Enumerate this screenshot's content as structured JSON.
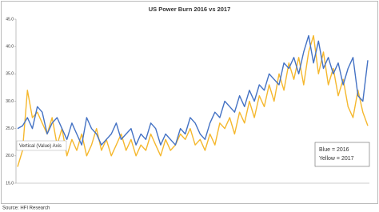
{
  "chart_data": {
    "type": "line",
    "title": "US Power Burn 2016 vs 2017",
    "series": [
      {
        "name": "Blue = 2016",
        "color": "#4472c4",
        "values": [
          25,
          25.5,
          27,
          25,
          29,
          28,
          24,
          26,
          27,
          25,
          23,
          26,
          24,
          22,
          27,
          25,
          24,
          22,
          23,
          24,
          26,
          23,
          24,
          25,
          22,
          24,
          23,
          26,
          25,
          22,
          24,
          23,
          22,
          25,
          24,
          27,
          26,
          24,
          23,
          26,
          28,
          27,
          30,
          29,
          28,
          31,
          29,
          32,
          30,
          33,
          32,
          35,
          34,
          33,
          37,
          36,
          38,
          35,
          39,
          42,
          37,
          41,
          36,
          38,
          35,
          37,
          33,
          36,
          38,
          31,
          30,
          37.5
        ]
      },
      {
        "name": "Yellow = 2017",
        "color": "#f5b82e",
        "values": [
          18,
          21,
          32,
          27,
          28,
          26,
          24,
          27,
          22,
          25,
          20,
          23,
          21,
          24,
          20,
          22,
          25,
          21,
          23,
          20,
          22,
          24,
          21,
          23,
          20,
          22,
          21,
          24,
          22,
          20,
          23,
          21,
          22,
          24,
          23,
          25,
          22,
          23,
          21,
          24,
          22,
          26,
          25,
          27,
          24,
          28,
          26,
          30,
          27,
          31,
          29,
          33,
          30,
          35,
          32,
          37,
          34,
          38,
          33,
          39,
          42,
          35,
          39,
          33,
          36,
          31,
          34,
          29,
          27,
          32,
          28,
          25.5
        ]
      }
    ],
    "ylim": [
      15,
      45
    ],
    "yticks": [
      {
        "value": 15,
        "label": "15.0"
      },
      {
        "value": 20,
        "label": "20.0"
      },
      {
        "value": 25,
        "label": "25.0"
      },
      {
        "value": 30,
        "label": "30.0"
      },
      {
        "value": 35,
        "label": "35.0"
      },
      {
        "value": 40,
        "label": "40.0"
      },
      {
        "value": 45,
        "label": "45.0"
      }
    ],
    "grid": false,
    "annotation": "Vertical (Value) Axis",
    "source": "Source: HFI Research"
  }
}
